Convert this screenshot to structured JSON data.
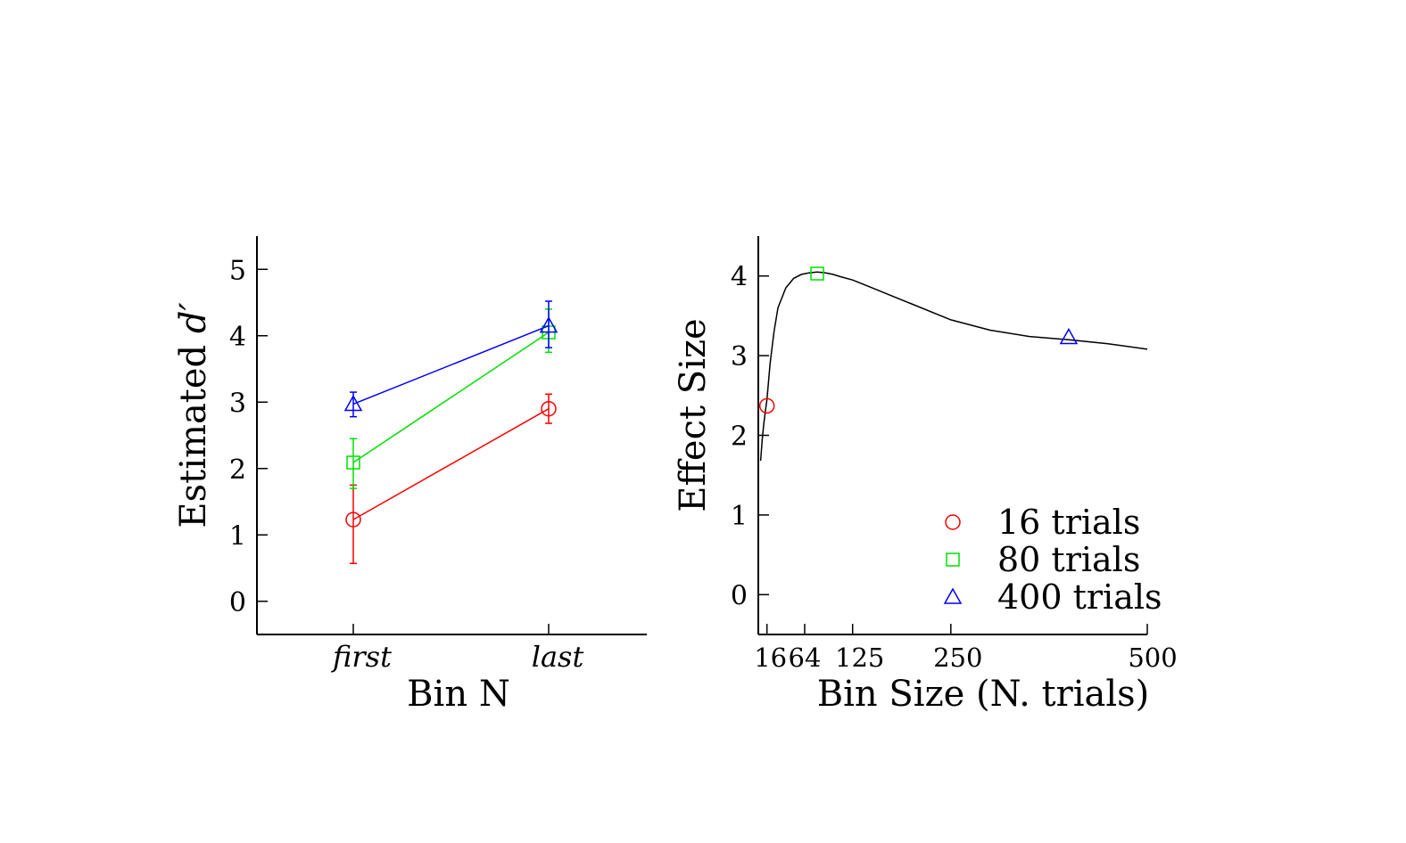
{
  "colors": {
    "red": "#ff0000",
    "green": "#00e000",
    "blue": "#0000ff",
    "curve": "#000000"
  },
  "chart_data": [
    {
      "type": "line",
      "xlabel": "Bin N",
      "ylabel_prefix": "Estimated ",
      "ylabel_symbol": "d′",
      "categories": [
        "first",
        "last"
      ],
      "ylim": [
        -0.5,
        5.5
      ],
      "yticks": [
        "0",
        "1",
        "2",
        "3",
        "4",
        "5"
      ],
      "series": [
        {
          "color": "red",
          "marker": "circle",
          "values": [
            1.23,
            2.9
          ],
          "err_low": [
            0.57,
            2.68
          ],
          "err_high": [
            1.75,
            3.12
          ]
        },
        {
          "color": "green",
          "marker": "square",
          "values": [
            2.09,
            4.05
          ],
          "err_low": [
            1.7,
            3.75
          ],
          "err_high": [
            2.45,
            4.4
          ]
        },
        {
          "color": "blue",
          "marker": "triangle",
          "values": [
            2.97,
            4.15
          ],
          "err_low": [
            2.78,
            3.82
          ],
          "err_high": [
            3.15,
            4.52
          ]
        }
      ]
    },
    {
      "type": "line",
      "xlabel": "Bin Size (N. trials)",
      "ylabel": "Effect Size",
      "xlim": [
        5,
        500
      ],
      "ylim": [
        -0.5,
        4.5
      ],
      "xticks": [
        "16",
        "64",
        "125",
        "250",
        "500"
      ],
      "yticks": [
        "0",
        "1",
        "2",
        "3",
        "4"
      ],
      "curve": {
        "x": [
          8,
          10,
          12,
          14,
          16,
          20,
          25,
          30,
          40,
          50,
          60,
          70,
          80,
          90,
          100,
          110,
          125,
          150,
          175,
          200,
          250,
          300,
          350,
          400,
          450,
          500
        ],
        "y": [
          1.68,
          1.95,
          2.15,
          2.3,
          2.45,
          2.9,
          3.3,
          3.6,
          3.85,
          3.97,
          4.02,
          4.04,
          4.05,
          4.04,
          4.02,
          3.99,
          3.95,
          3.85,
          3.75,
          3.65,
          3.45,
          3.32,
          3.24,
          3.2,
          3.15,
          3.08
        ]
      },
      "markers": [
        {
          "color": "red",
          "marker": "circle",
          "x": 16,
          "y": 2.37,
          "label": "16 trials"
        },
        {
          "color": "green",
          "marker": "square",
          "x": 80,
          "y": 4.03,
          "label": "80 trials"
        },
        {
          "color": "blue",
          "marker": "triangle",
          "x": 400,
          "y": 3.23,
          "label": "400 trials"
        }
      ],
      "legend_position": "bottom-right"
    }
  ]
}
